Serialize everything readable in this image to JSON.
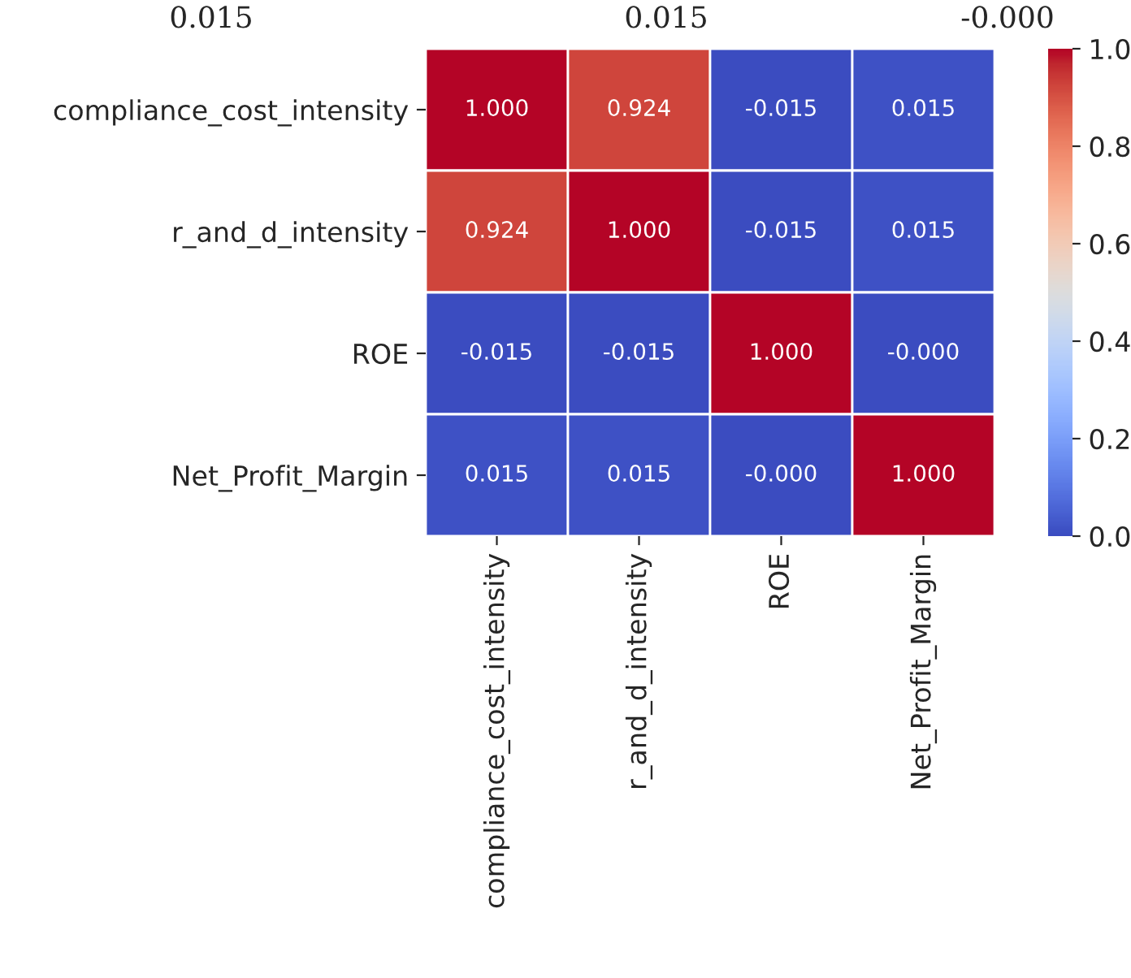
{
  "chart_data": {
    "type": "heatmap",
    "categories": [
      "compliance_cost_intensity",
      "r_and_d_intensity",
      "ROE",
      "Net_Profit_Margin"
    ],
    "y_categories": [
      "compliance_cost_intensity",
      "r_and_d_intensity",
      "ROE",
      "Net_Profit_Margin"
    ],
    "cells": [
      [
        1.0,
        0.924,
        -0.015,
        0.015
      ],
      [
        0.924,
        1.0,
        -0.015,
        0.015
      ],
      [
        -0.015,
        -0.015,
        1.0,
        -0.0
      ],
      [
        0.015,
        0.015,
        -0.0,
        1.0
      ]
    ],
    "cell_labels": [
      [
        "1.000",
        "0.924",
        "-0.015",
        "0.015"
      ],
      [
        "0.924",
        "1.000",
        "-0.015",
        "0.015"
      ],
      [
        "-0.015",
        "-0.015",
        "1.000",
        "-0.000"
      ],
      [
        "0.015",
        "0.015",
        "-0.000",
        "1.000"
      ]
    ],
    "clim": [
      0,
      1
    ],
    "cticks": [
      {
        "value": 0,
        "label": "0.0"
      },
      {
        "value": 0.2,
        "label": "0.2"
      },
      {
        "value": 0.4,
        "label": "0.4"
      },
      {
        "value": 0.6,
        "label": "0.6"
      },
      {
        "value": 0.8,
        "label": "0.8"
      },
      {
        "value": 1,
        "label": "1.0"
      }
    ],
    "annotations": [
      "0.015",
      "0.015",
      "-0.000"
    ]
  }
}
